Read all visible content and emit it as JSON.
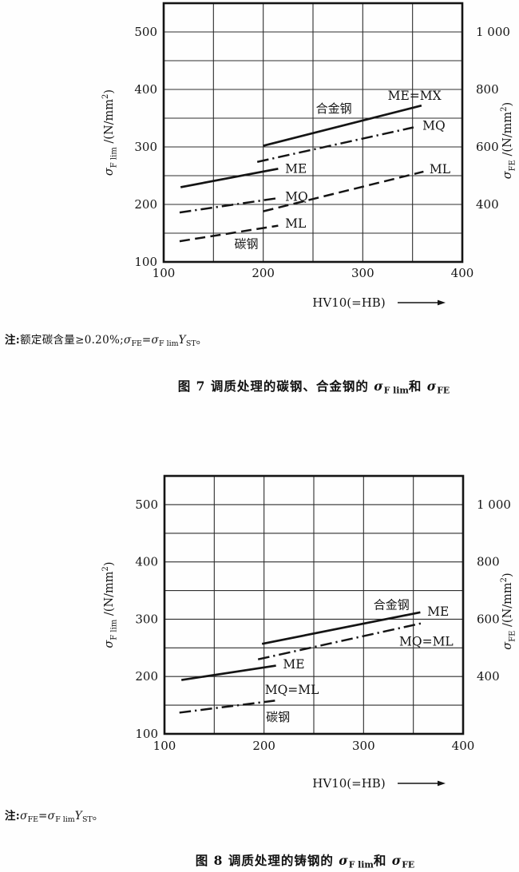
{
  "colors": {
    "ink": "#141414",
    "paper": "#fefefe"
  },
  "texts": {
    "note1": {
      "parts": [
        {
          "t": "注:",
          "b": 1
        },
        {
          "t": "额定碳含量≥0.20%;"
        },
        {
          "t": "σ",
          "i": 1
        },
        {
          "t": "FE",
          "sub": 1
        },
        {
          "t": "="
        },
        {
          "t": "σ",
          "i": 1
        },
        {
          "t": "F lim",
          "sub": 1
        },
        {
          "t": "Y",
          "i": 1
        },
        {
          "t": "ST",
          "sub": 1
        },
        {
          "t": "。"
        }
      ]
    },
    "caption1": {
      "parts": [
        {
          "t": "图 7  调质处理的碳钢、合金钢的 "
        },
        {
          "t": "σ",
          "i": 1
        },
        {
          "t": "F lim",
          "sub": 1
        },
        {
          "t": "和 "
        },
        {
          "t": "σ",
          "i": 1
        },
        {
          "t": "FE",
          "sub": 1
        }
      ]
    },
    "note2": {
      "parts": [
        {
          "t": "注:",
          "b": 1
        },
        {
          "t": "σ",
          "i": 1
        },
        {
          "t": "FE",
          "sub": 1
        },
        {
          "t": "="
        },
        {
          "t": "σ",
          "i": 1
        },
        {
          "t": "F lim",
          "sub": 1
        },
        {
          "t": "Y",
          "i": 1
        },
        {
          "t": "ST",
          "sub": 1
        },
        {
          "t": "。"
        }
      ]
    },
    "caption2": {
      "parts": [
        {
          "t": "图 8  调质处理的铸钢的 "
        },
        {
          "t": "σ",
          "i": 1
        },
        {
          "t": "F lim",
          "sub": 1
        },
        {
          "t": "和 "
        },
        {
          "t": "σ",
          "i": 1
        },
        {
          "t": "FE",
          "sub": 1
        }
      ]
    }
  },
  "chart_data": [
    {
      "id": "fig7",
      "type": "line",
      "title": "图 7 调质处理的碳钢、合金钢的 σF lim 和 σFE",
      "note": "注:额定碳含量≥0.20%;σFE=σF lim YST。",
      "xlabel": "HV10(=HB)",
      "xlim": [
        100,
        400
      ],
      "x_ticks": [
        "100",
        "200",
        "300",
        "400"
      ],
      "grid_step": 50,
      "grid": true,
      "left_axis": {
        "lim": [
          100,
          550
        ],
        "ticks": [
          100,
          200,
          300,
          400,
          500
        ],
        "title_parts": [
          {
            "t": "σ",
            "i": 1
          },
          {
            "t": "F lim",
            "sub": 1
          },
          {
            "t": " /(N/mm"
          },
          {
            "t": "2",
            "sup": 1
          },
          {
            "t": ")"
          }
        ]
      },
      "right_axis": {
        "relation": "right = 2 × left (σFE = σF lim · YST, YST = 2)",
        "ticks_at_left_value": [
          200,
          300,
          400,
          500
        ],
        "tick_labels": [
          "400",
          "600",
          "800",
          "1 000"
        ],
        "title_parts": [
          {
            "t": "σ",
            "i": 1
          },
          {
            "t": "FE",
            "sub": 1
          },
          {
            "t": " /(N/mm"
          },
          {
            "t": "2",
            "sup": 1
          },
          {
            "t": ")"
          }
        ]
      },
      "series": [
        {
          "group": "碳钢",
          "name": "ML",
          "style": "dashed",
          "x": [
            116,
            215
          ],
          "y": [
            136,
            163
          ],
          "label": {
            "t": "ML",
            "x": 222,
            "y": 160,
            "anchor": "start"
          }
        },
        {
          "group": "碳钢",
          "name": "MQ",
          "style": "dashdot",
          "x": [
            116,
            215
          ],
          "y": [
            186,
            211
          ],
          "label": {
            "t": "MQ",
            "x": 222,
            "y": 206,
            "anchor": "start"
          }
        },
        {
          "group": "碳钢",
          "name": "ME",
          "style": "solid",
          "x": [
            117,
            215
          ],
          "y": [
            230,
            262
          ],
          "label": {
            "t": "ME",
            "x": 222,
            "y": 255,
            "anchor": "start"
          }
        },
        {
          "group": "合金钢",
          "name": "ML",
          "style": "dashed",
          "x": [
            200,
            361
          ],
          "y": [
            188,
            257
          ],
          "label": {
            "t": "ML",
            "x": 367,
            "y": 254,
            "anchor": "start"
          }
        },
        {
          "group": "合金钢",
          "name": "MQ",
          "style": "dashdot",
          "x": [
            194,
            351
          ],
          "y": [
            274,
            334
          ],
          "label": {
            "t": "MQ",
            "x": 360,
            "y": 330,
            "anchor": "start"
          }
        },
        {
          "group": "合金钢",
          "name": "ME=MX",
          "style": "solid",
          "x": [
            200,
            359
          ],
          "y": [
            302,
            372
          ],
          "label": {
            "t": "ME=MX",
            "x": 352,
            "y": 382,
            "anchor": "middle"
          }
        }
      ],
      "group_labels": [
        {
          "t": "碳钢",
          "x": 183,
          "y": 124
        },
        {
          "t": "合金钢",
          "x": 271,
          "y": 360
        }
      ]
    },
    {
      "id": "fig8",
      "type": "line",
      "title": "图 8 调质处理的铸钢的 σF lim 和 σFE",
      "note": "注:σFE=σF lim YST。",
      "xlabel": "HV10(=HB)",
      "xlim": [
        100,
        400
      ],
      "x_ticks": [
        "100",
        "200",
        "300",
        "400"
      ],
      "grid_step": 50,
      "grid": true,
      "left_axis": {
        "lim": [
          100,
          550
        ],
        "ticks": [
          100,
          200,
          300,
          400,
          500
        ],
        "title_parts": [
          {
            "t": "σ",
            "i": 1
          },
          {
            "t": "F lim",
            "sub": 1
          },
          {
            "t": " /(N/mm"
          },
          {
            "t": "2",
            "sup": 1
          },
          {
            "t": ")"
          }
        ]
      },
      "right_axis": {
        "relation": "right = 2 × left (σFE = σF lim · YST, YST = 2)",
        "ticks_at_left_value": [
          200,
          300,
          400,
          500
        ],
        "tick_labels": [
          "400",
          "600",
          "800",
          "1 000"
        ],
        "title_parts": [
          {
            "t": "σ",
            "i": 1
          },
          {
            "t": "FE",
            "sub": 1
          },
          {
            "t": " /(N/mm"
          },
          {
            "t": "2",
            "sup": 1
          },
          {
            "t": ")"
          }
        ]
      },
      "series": [
        {
          "group": "碳钢",
          "name": "MQ=ML",
          "style": "dashdot",
          "x": [
            115,
            211
          ],
          "y": [
            137,
            158
          ],
          "label": {
            "t": "MQ=ML",
            "x": 228,
            "y": 170,
            "anchor": "middle"
          }
        },
        {
          "group": "碳钢",
          "name": "ME",
          "style": "solid",
          "x": [
            117,
            212
          ],
          "y": [
            194,
            219
          ],
          "label": {
            "t": "ME",
            "x": 219,
            "y": 214,
            "anchor": "start"
          }
        },
        {
          "group": "合金钢",
          "name": "MQ=ML",
          "style": "dashdot",
          "x": [
            194,
            361
          ],
          "y": [
            230,
            294
          ],
          "label": {
            "t": "MQ=ML",
            "x": 363,
            "y": 254,
            "anchor": "middle"
          }
        },
        {
          "group": "合金钢",
          "name": "ME",
          "style": "solid",
          "x": [
            198,
            357
          ],
          "y": [
            257,
            312
          ],
          "label": {
            "t": "ME",
            "x": 364,
            "y": 306,
            "anchor": "start"
          }
        }
      ],
      "group_labels": [
        {
          "t": "碳钢",
          "x": 214,
          "y": 122
        },
        {
          "t": "合金钢",
          "x": 328,
          "y": 318
        }
      ]
    }
  ]
}
